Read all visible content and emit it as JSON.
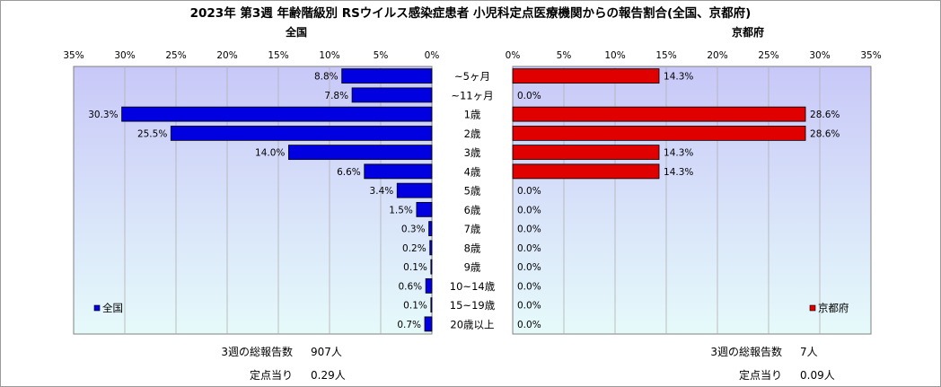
{
  "title": "2023年 第3週 年齢階級別 RSウイルス感染症患者 小児科定点医療機関からの報告割合(全国、京都府)",
  "colors": {
    "left_bar": "#0000e0",
    "right_bar": "#e00000",
    "plot_top": "#c8c8f8",
    "plot_bottom": "#e6fafa"
  },
  "chart_data": [
    {
      "type": "bar",
      "orientation": "horizontal",
      "title": "全国",
      "legend": "全国",
      "legend_placement": "bottom-left",
      "xlim": [
        0,
        35
      ],
      "x_direction": "reversed",
      "ticks": [
        "35%",
        "30%",
        "25%",
        "20%",
        "15%",
        "10%",
        "5%",
        "0%"
      ],
      "grid": true,
      "categories": [
        "~5ヶ月",
        "~11ヶ月",
        "1歳",
        "2歳",
        "3歳",
        "4歳",
        "5歳",
        "6歳",
        "7歳",
        "8歳",
        "9歳",
        "10~14歳",
        "15~19歳",
        "20歳以上"
      ],
      "values": [
        8.8,
        7.8,
        30.3,
        25.5,
        14.0,
        6.6,
        3.4,
        1.5,
        0.3,
        0.2,
        0.1,
        0.6,
        0.1,
        0.7
      ],
      "data_labels": [
        "8.8%",
        "7.8%",
        "30.3%",
        "25.5%",
        "14.0%",
        "6.6%",
        "3.4%",
        "1.5%",
        "0.3%",
        "0.2%",
        "0.1%",
        "0.6%",
        "0.1%",
        "0.7%"
      ]
    },
    {
      "type": "bar",
      "orientation": "horizontal",
      "title": "京都府",
      "legend": "京都府",
      "legend_placement": "bottom-right",
      "xlim": [
        0,
        35
      ],
      "ticks": [
        "0%",
        "5%",
        "10%",
        "15%",
        "20%",
        "25%",
        "30%",
        "35%"
      ],
      "grid": true,
      "categories": [
        "~5ヶ月",
        "~11ヶ月",
        "1歳",
        "2歳",
        "3歳",
        "4歳",
        "5歳",
        "6歳",
        "7歳",
        "8歳",
        "9歳",
        "10~14歳",
        "15~19歳",
        "20歳以上"
      ],
      "values": [
        14.3,
        0.0,
        28.6,
        28.6,
        14.3,
        14.3,
        0.0,
        0.0,
        0.0,
        0.0,
        0.0,
        0.0,
        0.0,
        0.0
      ],
      "data_labels": [
        "14.3%",
        "0.0%",
        "28.6%",
        "28.6%",
        "14.3%",
        "14.3%",
        "0.0%",
        "0.0%",
        "0.0%",
        "0.0%",
        "0.0%",
        "0.0%",
        "0.0%",
        "0.0%"
      ]
    }
  ],
  "summary": {
    "left": {
      "total_label": "3週の総報告数",
      "total_value": "907人",
      "per_label": "定点当り",
      "per_value": "0.29人"
    },
    "right": {
      "total_label": "3週の総報告数",
      "total_value": "7人",
      "per_label": "定点当り",
      "per_value": "0.09人"
    }
  }
}
